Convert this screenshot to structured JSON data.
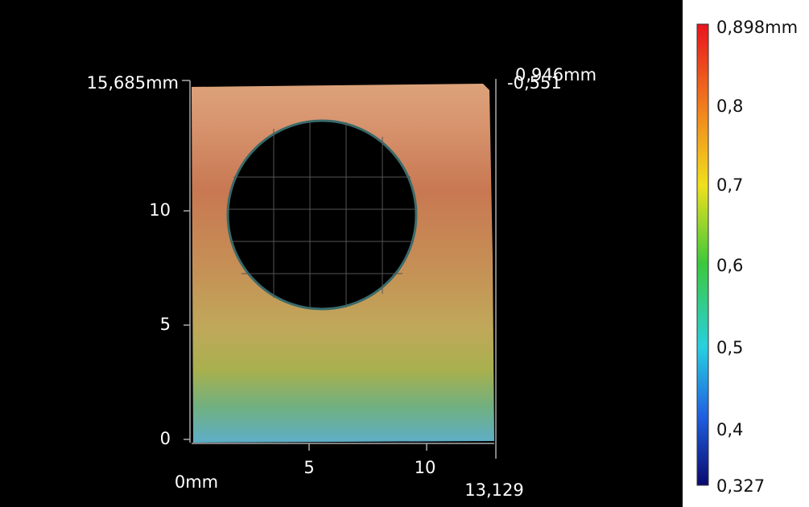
{
  "view": {
    "y_axis_labels": [
      "15,685mm",
      "10",
      "5",
      "0"
    ],
    "x_axis_labels": [
      "0mm",
      "5",
      "10",
      "13,129"
    ],
    "z_axis_labels": [
      "0,946mm",
      "-0,551"
    ],
    "colorbar_labels": [
      "0,898mm",
      "0,8",
      "0,7",
      "0,6",
      "0,5",
      "0,4",
      "0,327"
    ]
  }
}
